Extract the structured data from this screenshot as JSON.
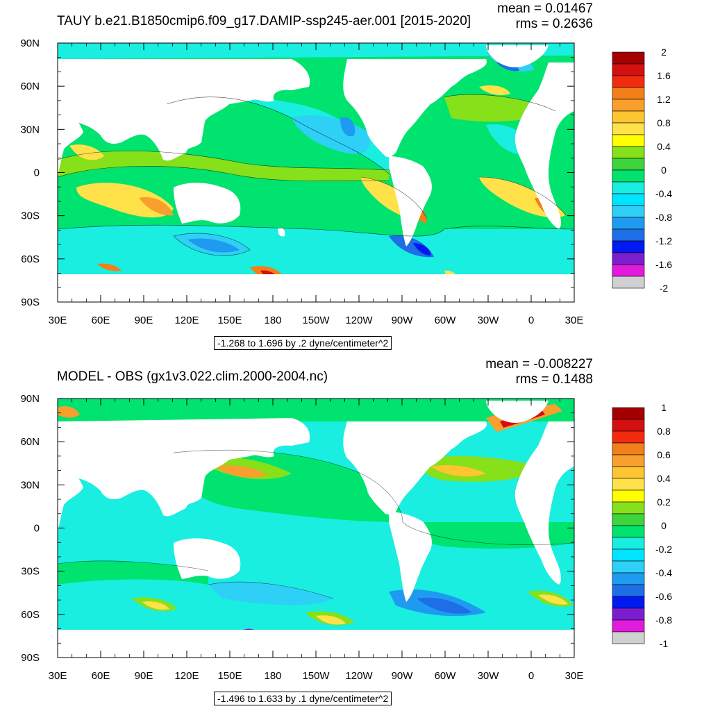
{
  "panels": [
    {
      "title": "TAUY b.e21.B1850cmip6.f09_g17.DAMIP-ssp245-aer.001 [2015-2020]",
      "mean": "mean = 0.01467",
      "rms": "rms = 0.2636",
      "range_label": "-1.268 to 1.696 by .2 dyne/centimeter^2",
      "colorbar": {
        "labels": [
          "2",
          "1.6",
          "1.2",
          "0.8",
          "0.4",
          "0",
          "-0.4",
          "-0.8",
          "-1.2",
          "-1.6",
          "-2"
        ],
        "colors": [
          "#a50000",
          "#d40f0f",
          "#f22b0e",
          "#f27f1a",
          "#f99f2e",
          "#fdc531",
          "#ffe14a",
          "#ffff00",
          "#86e01a",
          "#3ed43b",
          "#00e36f",
          "#19eee0",
          "#00e5ff",
          "#2ed0f5",
          "#1e9bf0",
          "#1e6ee6",
          "#0019f0",
          "#7a1ed0",
          "#e01bdb",
          "#d0d0d0",
          "#7a7a7a"
        ]
      }
    },
    {
      "title": "MODEL - OBS (gx1v3.022.clim.2000-2004.nc)",
      "mean": "mean = -0.008227",
      "rms": "rms = 0.1488",
      "range_label": "-1.496 to 1.633 by .1 dyne/centimeter^2",
      "colorbar": {
        "labels": [
          "1",
          "0.8",
          "0.6",
          "0.4",
          "0.2",
          "0",
          "-0.2",
          "-0.4",
          "-0.6",
          "-0.8",
          "-1"
        ],
        "colors": [
          "#a50000",
          "#d40f0f",
          "#f22b0e",
          "#f27f1a",
          "#f99f2e",
          "#fdc531",
          "#ffe14a",
          "#ffff00",
          "#86e01a",
          "#3ed43b",
          "#00e36f",
          "#19eee0",
          "#00e5ff",
          "#2ed0f5",
          "#1e9bf0",
          "#1e6ee6",
          "#0019f0",
          "#7a1ed0",
          "#e01bdb",
          "#d0d0d0",
          "#7a7a7a"
        ]
      }
    }
  ],
  "axes": {
    "lon_ticks": [
      "30E",
      "60E",
      "90E",
      "120E",
      "150E",
      "180",
      "150W",
      "120W",
      "90W",
      "60W",
      "30W",
      "0",
      "30E"
    ],
    "lat_ticks": [
      "90N",
      "60N",
      "30N",
      "0",
      "30S",
      "60S",
      "90S"
    ]
  }
}
